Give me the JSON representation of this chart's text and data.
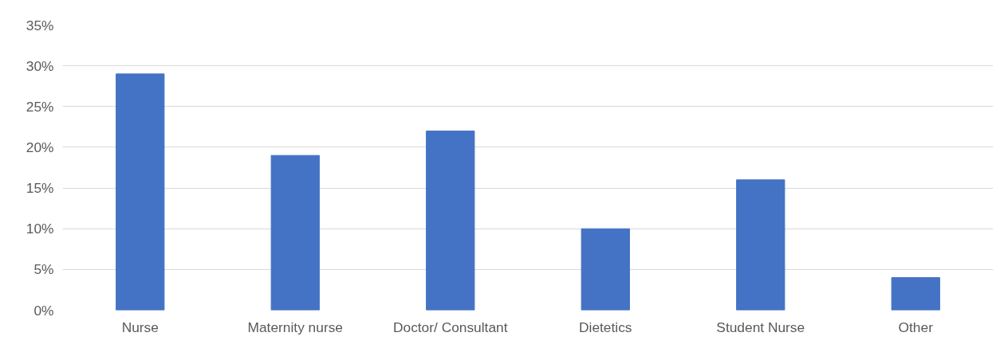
{
  "chart_data": {
    "type": "bar",
    "categories": [
      "Nurse",
      "Maternity nurse",
      "Doctor/ Consultant",
      "Dietetics",
      "Student Nurse",
      "Other"
    ],
    "values": [
      29,
      19,
      22,
      10,
      16,
      4
    ],
    "color": "#4472c4",
    "ylim": [
      0,
      35
    ],
    "yticks": [
      {
        "value": 0,
        "label": "0%"
      },
      {
        "value": 5,
        "label": "5%"
      },
      {
        "value": 10,
        "label": "10%"
      },
      {
        "value": 15,
        "label": "15%"
      },
      {
        "value": 20,
        "label": "20%"
      },
      {
        "value": 25,
        "label": "25%"
      },
      {
        "value": 30,
        "label": "30%"
      },
      {
        "value": 35,
        "label": "35%"
      }
    ],
    "grid": "y"
  }
}
